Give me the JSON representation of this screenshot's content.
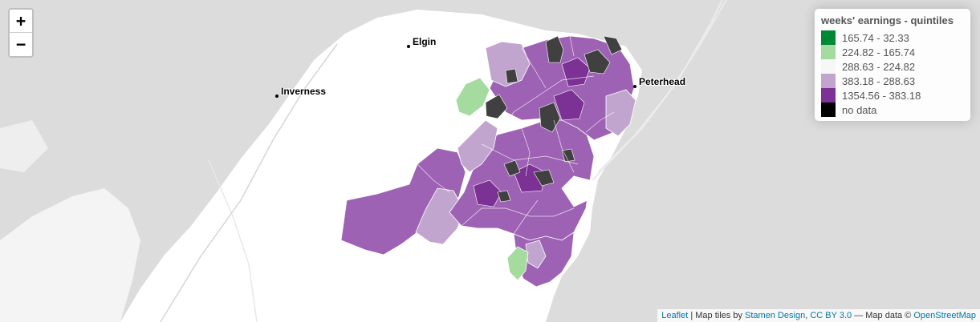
{
  "zoom": {
    "in_label": "+",
    "out_label": "−"
  },
  "legend": {
    "title": "weeks' earnings - quintiles",
    "items": [
      {
        "label": "165.74 - 32.33",
        "color": "#008837"
      },
      {
        "label": "224.82 - 165.74",
        "color": "#a6dba0"
      },
      {
        "label": "288.63 - 224.82",
        "color": "#f7f7f7"
      },
      {
        "label": "383.18 - 288.63",
        "color": "#c2a5cf"
      },
      {
        "label": "1354.56 - 383.18",
        "color": "#7b3294"
      },
      {
        "label": "no data",
        "color": "#000000"
      }
    ]
  },
  "cities": [
    {
      "name": "Elgin"
    },
    {
      "name": "Inverness"
    },
    {
      "name": "Peterhead"
    }
  ],
  "attribution": {
    "leaflet": "Leaflet",
    "sep1": " | Map tiles by ",
    "stamen": "Stamen Design",
    "comma": ", ",
    "license": "CC BY 3.0",
    "sep2": " — Map data © ",
    "osm": "OpenStreetMap"
  },
  "colors": {
    "sea": "#dcdcdc",
    "land": "#ffffff",
    "region_fill": "#9e62b4",
    "region_dark": "#7b3294",
    "region_light": "#c2a5cf",
    "no_data": "#404040",
    "green_light": "#a6dba0"
  }
}
